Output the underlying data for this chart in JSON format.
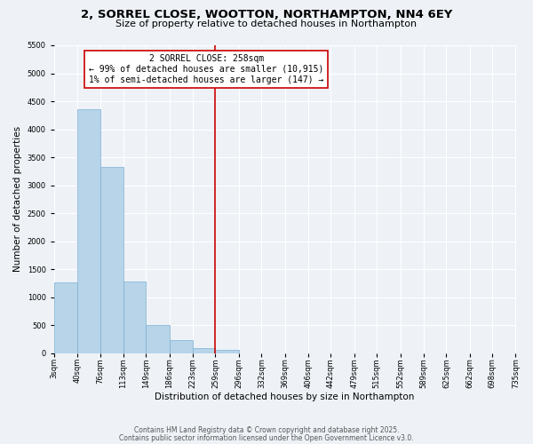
{
  "title": "2, SORREL CLOSE, WOOTTON, NORTHAMPTON, NN4 6EY",
  "subtitle": "Size of property relative to detached houses in Northampton",
  "xlabel": "Distribution of detached houses by size in Northampton",
  "ylabel": "Number of detached properties",
  "bar_edges": [
    3,
    40,
    76,
    113,
    149,
    186,
    223,
    259,
    296,
    332,
    369,
    406,
    442,
    479,
    515,
    552,
    589,
    625,
    662,
    698,
    735
  ],
  "bar_heights": [
    1270,
    4360,
    3320,
    1280,
    500,
    230,
    80,
    50,
    0,
    0,
    0,
    0,
    0,
    0,
    0,
    0,
    0,
    0,
    0,
    0
  ],
  "bar_color": "#b8d4e8",
  "bar_edge_color": "#7ab0d4",
  "vertical_line_x": 259,
  "vertical_line_color": "#cc0000",
  "ylim": [
    0,
    5500
  ],
  "annotation_title": "2 SORREL CLOSE: 258sqm",
  "annotation_line1": "← 99% of detached houses are smaller (10,915)",
  "annotation_line2": "1% of semi-detached houses are larger (147) →",
  "annotation_box_color": "#ffffff",
  "annotation_box_edge_color": "#cc0000",
  "tick_labels": [
    "3sqm",
    "40sqm",
    "76sqm",
    "113sqm",
    "149sqm",
    "186sqm",
    "223sqm",
    "259sqm",
    "296sqm",
    "332sqm",
    "369sqm",
    "406sqm",
    "442sqm",
    "479sqm",
    "515sqm",
    "552sqm",
    "589sqm",
    "625sqm",
    "662sqm",
    "698sqm",
    "735sqm"
  ],
  "footnote1": "Contains HM Land Registry data © Crown copyright and database right 2025.",
  "footnote2": "Contains public sector information licensed under the Open Government Licence v3.0.",
  "background_color": "#eef2f7",
  "grid_color": "#ffffff",
  "title_fontsize": 9.5,
  "subtitle_fontsize": 8,
  "axis_label_fontsize": 7.5,
  "tick_fontsize": 6,
  "annotation_fontsize": 7,
  "footnote_fontsize": 5.5
}
